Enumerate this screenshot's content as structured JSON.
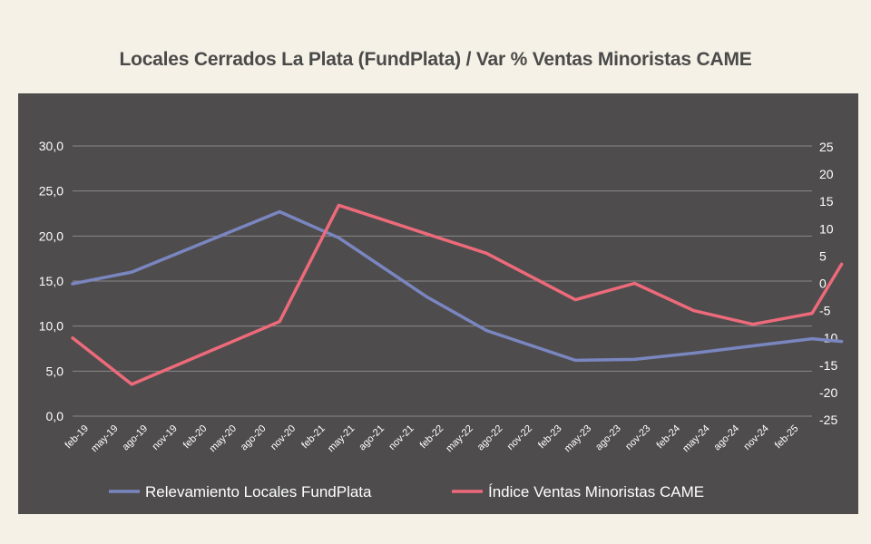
{
  "chart_data": {
    "type": "line",
    "title": "Locales Cerrados La Plata (FundPlata) / Var % Ventas Minoristas CAME",
    "x": [
      "feb-19",
      "may-19",
      "ago-19",
      "nov-19",
      "feb-20",
      "may-20",
      "ago-20",
      "nov-20",
      "feb-21",
      "may-21",
      "ago-21",
      "nov-21",
      "feb-22",
      "may-22",
      "ago-22",
      "nov-22",
      "feb-23",
      "may-23",
      "ago-23",
      "nov-23",
      "feb-24",
      "may-24",
      "ago-24",
      "nov-24",
      "feb-25"
    ],
    "y_left": {
      "ticks": [
        "0,0",
        "5,0",
        "10,0",
        "15,0",
        "20,0",
        "25,0",
        "30,0"
      ],
      "ylim": [
        0,
        30
      ]
    },
    "y_right": {
      "ticks": [
        "25",
        "20",
        "15",
        "10",
        "5",
        "0",
        "-5",
        "-10",
        "-15",
        "-20",
        "-25"
      ],
      "ylim": [
        -25,
        25
      ]
    },
    "grid": true,
    "legend_position": "bottom",
    "series": [
      {
        "name": "Relevamiento Locales FundPlata",
        "axis": "left",
        "color": "#7a86c0",
        "points": [
          [
            0,
            14.7
          ],
          [
            2,
            16.0
          ],
          [
            7,
            22.7
          ],
          [
            9,
            19.8
          ],
          [
            12,
            13.2
          ],
          [
            14,
            9.5
          ],
          [
            17,
            6.2
          ],
          [
            19,
            6.3
          ],
          [
            21,
            7.0
          ],
          [
            23,
            7.8
          ],
          [
            25,
            8.6
          ],
          [
            26,
            8.3
          ]
        ]
      },
      {
        "name": "Índice Ventas Minoristas CAME",
        "axis": "right",
        "color": "#ed6a7a",
        "points": [
          [
            0,
            -10.0
          ],
          [
            2,
            -18.5
          ],
          [
            7,
            -7.0
          ],
          [
            9,
            14.3
          ],
          [
            12,
            9.0
          ],
          [
            14,
            5.5
          ],
          [
            17,
            -3.0
          ],
          [
            19,
            0.0
          ],
          [
            21,
            -5.0
          ],
          [
            23,
            -7.5
          ],
          [
            25,
            -5.5
          ],
          [
            26,
            3.5
          ]
        ]
      }
    ]
  }
}
